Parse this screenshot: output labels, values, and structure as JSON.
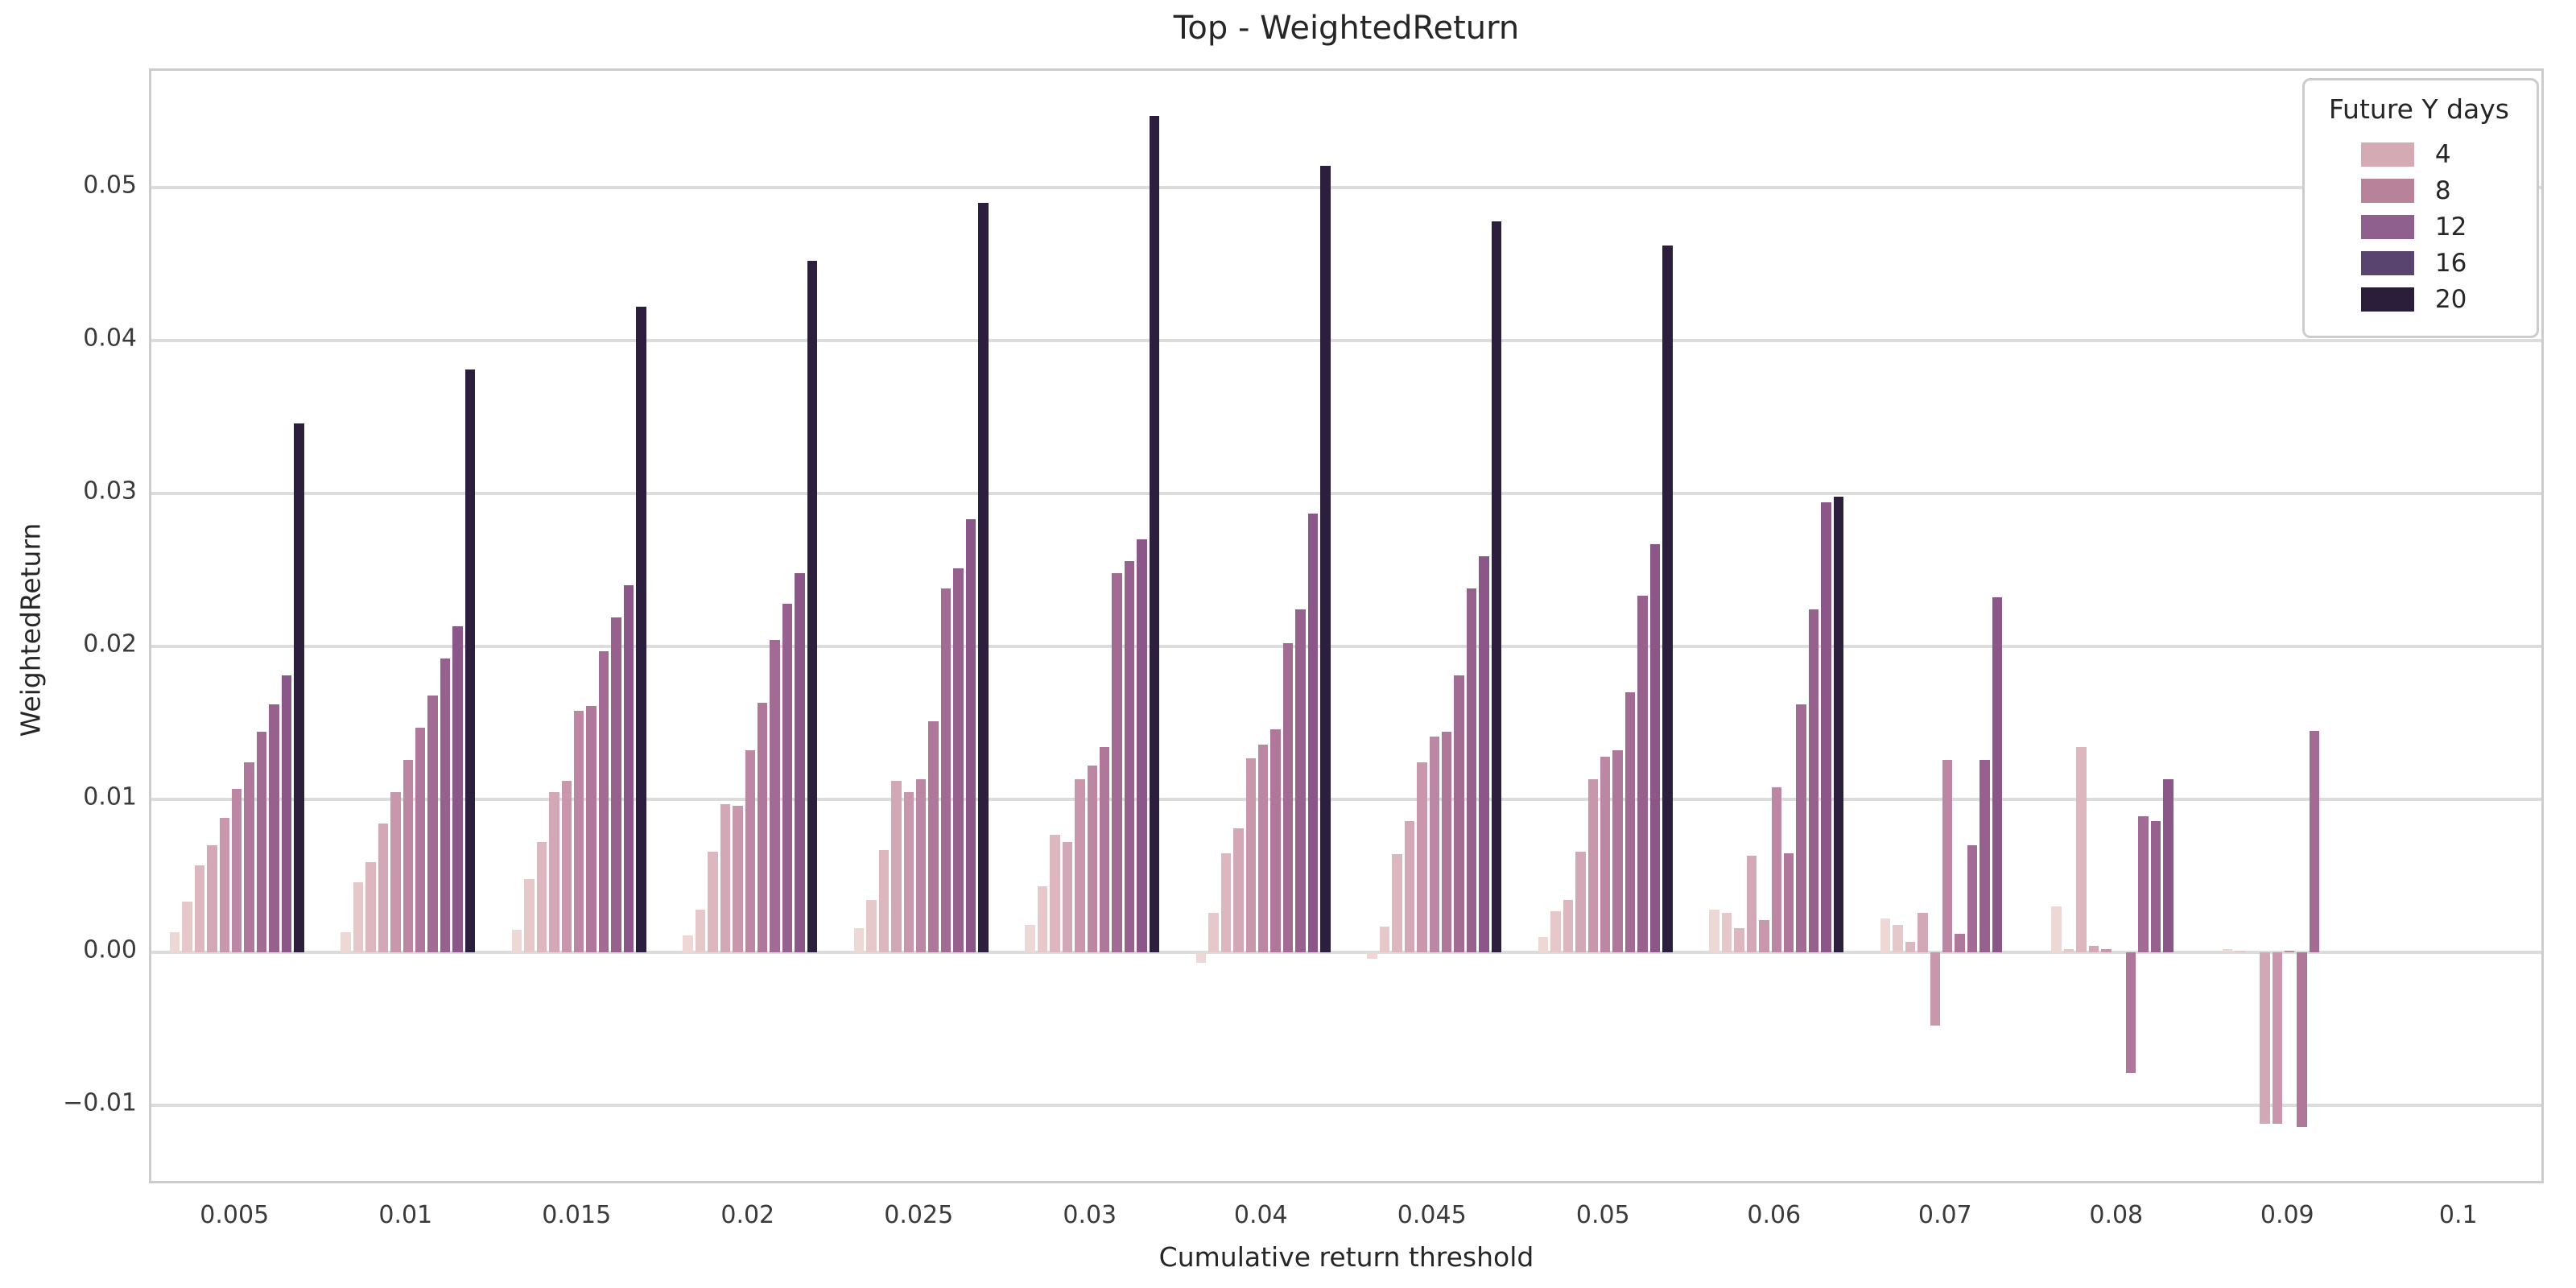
{
  "title": "Top - WeightedReturn",
  "x_axis": {
    "label": "Cumulative return threshold",
    "ticks": [
      "0.005",
      "0.01",
      "0.015",
      "0.02",
      "0.025",
      "0.03",
      "0.04",
      "0.045",
      "0.05",
      "0.06",
      "0.07",
      "0.08",
      "0.09",
      "0.1"
    ]
  },
  "y_axis": {
    "label": "WeightedReturn",
    "ticks": [
      {
        "value": 0.05,
        "label": "0.05"
      },
      {
        "value": 0.04,
        "label": "0.04"
      },
      {
        "value": 0.03,
        "label": "0.03"
      },
      {
        "value": 0.02,
        "label": "0.02"
      },
      {
        "value": 0.01,
        "label": "0.01"
      },
      {
        "value": 0.0,
        "label": "0.00"
      },
      {
        "value": -0.01,
        "label": "−0.01"
      }
    ]
  },
  "legend": {
    "title": "Future Y days",
    "entries": [
      {
        "label": "4",
        "color": "#d4aab4"
      },
      {
        "label": "8",
        "color": "#b9829b"
      },
      {
        "label": "12",
        "color": "#8f5f8d"
      },
      {
        "label": "16",
        "color": "#594470"
      },
      {
        "label": "20",
        "color": "#2a1e3b"
      }
    ]
  },
  "colors": {
    "grid": "#dcdcdc",
    "spine": "#cccccc",
    "text": "#262626",
    "background": "#ffffff"
  },
  "chart_data": {
    "type": "bar",
    "title": "Top - WeightedReturn",
    "xlabel": "Cumulative return threshold",
    "ylabel": "WeightedReturn",
    "ylim": [
      -0.0153,
      0.0576
    ],
    "grid": true,
    "legend_position": "upper right",
    "legend_title": "Future Y days",
    "legend_tick_labels": [
      4,
      8,
      12,
      16,
      20
    ],
    "categories": [
      "0.005",
      "0.01",
      "0.015",
      "0.02",
      "0.025",
      "0.03",
      "0.04",
      "0.045",
      "0.05",
      "0.06",
      "0.07",
      "0.08",
      "0.09",
      "0.1"
    ],
    "series": [
      {
        "name": "hue-level-1",
        "color": "#eed8d6",
        "values": [
          0.0013,
          0.0013,
          0.0015,
          0.0011,
          0.0016,
          0.0018,
          -0.0007,
          -0.0004,
          0.001,
          0.0028,
          0.0022,
          0.003,
          0.0002,
          0
        ]
      },
      {
        "name": "hue-level-2",
        "color": "#e6c8cb",
        "values": [
          0.0033,
          0.0046,
          0.0048,
          0.0028,
          0.0034,
          0.0043,
          0.0026,
          0.0017,
          0.0027,
          0.0026,
          0.0018,
          0.0002,
          0.0001,
          0
        ]
      },
      {
        "name": "hue-level-3",
        "color": "#ddb7c0",
        "values": [
          0.0057,
          0.0059,
          0.0072,
          0.0066,
          0.0067,
          0.0077,
          0.0065,
          0.0064,
          0.0034,
          0.0016,
          0.0007,
          0.0134,
          0,
          0
        ]
      },
      {
        "name": "hue-level-4",
        "color": "#d3a8b6",
        "values": [
          0.007,
          0.0084,
          0.0105,
          0.0097,
          0.0112,
          0.0072,
          0.0081,
          0.0086,
          0.0066,
          0.0063,
          0.0026,
          0.0004,
          -0.0112,
          0
        ]
      },
      {
        "name": "hue-level-5",
        "color": "#c897ac",
        "values": [
          0.0088,
          0.0105,
          0.0112,
          0.0096,
          0.0105,
          0.0113,
          0.0127,
          0.0124,
          0.0113,
          0.0021,
          -0.0048,
          0.0002,
          -0.0112,
          0
        ]
      },
      {
        "name": "hue-level-6",
        "color": "#bc87a3",
        "values": [
          0.0107,
          0.0126,
          0.0158,
          0.0132,
          0.0113,
          0.0122,
          0.0136,
          0.0141,
          0.0128,
          0.0108,
          0.0126,
          0,
          0.0001,
          0
        ]
      },
      {
        "name": "hue-level-7",
        "color": "#af779a",
        "values": [
          0.0124,
          0.0147,
          0.0161,
          0.0163,
          0.0151,
          0.0134,
          0.0146,
          0.0144,
          0.0132,
          0.0065,
          0.0012,
          -0.0079,
          -0.0114,
          0
        ]
      },
      {
        "name": "hue-level-8",
        "color": "#a26b93",
        "values": [
          0.0144,
          0.0168,
          0.0197,
          0.0204,
          0.0238,
          0.0248,
          0.0202,
          0.0181,
          0.017,
          0.0162,
          0.007,
          0.0089,
          0.0145,
          0
        ]
      },
      {
        "name": "hue-level-9",
        "color": "#97618e",
        "values": [
          0.0162,
          0.0192,
          0.0219,
          0.0228,
          0.0251,
          0.0256,
          0.0224,
          0.0238,
          0.0233,
          0.0224,
          0.0126,
          0.0086,
          0,
          0
        ]
      },
      {
        "name": "hue-level-10",
        "color": "#8b5789",
        "values": [
          0.0181,
          0.0213,
          0.024,
          0.0248,
          0.0283,
          0.027,
          0.0287,
          0.0259,
          0.0267,
          0.0294,
          0.0232,
          0.0113,
          0,
          0
        ]
      },
      {
        "name": "hue-level-11",
        "color": "#2c1e3d",
        "values": [
          0.0346,
          0.0381,
          0.0422,
          0.0452,
          0.049,
          0.0547,
          0.0514,
          0.0478,
          0.0462,
          0.0298,
          0,
          0,
          0,
          0
        ]
      }
    ]
  }
}
